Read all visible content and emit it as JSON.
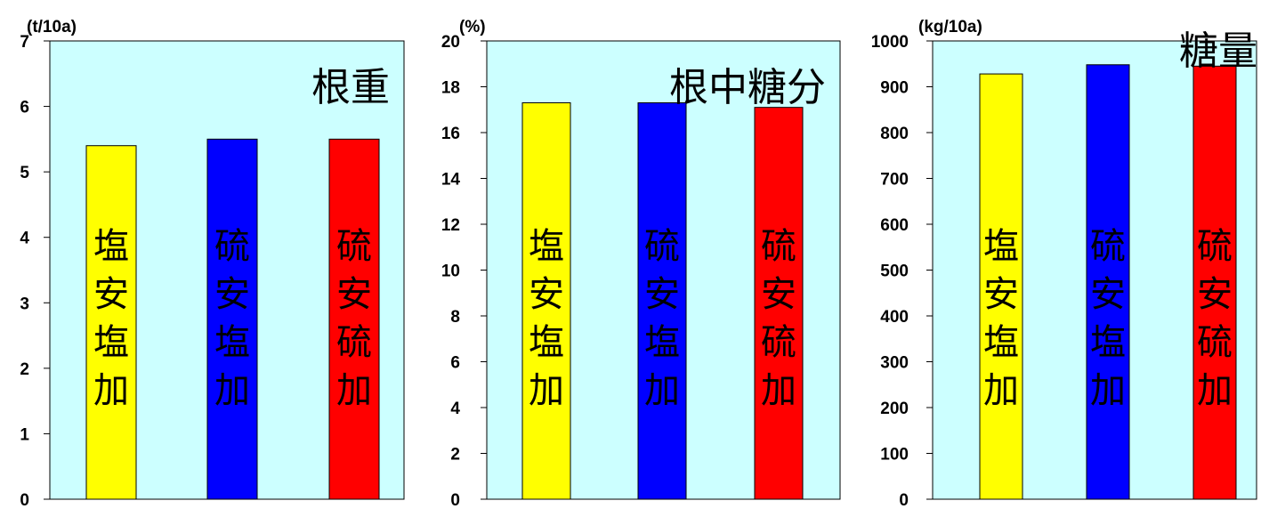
{
  "colors": {
    "plot_bg": "#ccffff",
    "yellow": "#ffff00",
    "blue": "#0000ff",
    "red": "#ff0000"
  },
  "chart_data": [
    {
      "type": "bar",
      "title": "根重",
      "ylabel": "(t/10a)",
      "ylim": [
        0,
        7
      ],
      "yticks": [
        0,
        1,
        2,
        3,
        4,
        5,
        6,
        7
      ],
      "categories": [
        "塩安塩加",
        "硫安塩加",
        "硫安硫加"
      ],
      "values": [
        5.4,
        5.5,
        5.5
      ],
      "colors": [
        "#ffff00",
        "#0000ff",
        "#ff0000"
      ]
    },
    {
      "type": "bar",
      "title": "根中糖分",
      "ylabel": "(%)",
      "ylim": [
        0,
        20
      ],
      "yticks": [
        0,
        2,
        4,
        6,
        8,
        10,
        12,
        14,
        16,
        18,
        20
      ],
      "categories": [
        "塩安塩加",
        "硫安塩加",
        "硫安硫加"
      ],
      "values": [
        17.3,
        17.3,
        17.1
      ],
      "colors": [
        "#ffff00",
        "#0000ff",
        "#ff0000"
      ]
    },
    {
      "type": "bar",
      "title": "糖量",
      "ylabel": "(kg/10a)",
      "ylim": [
        0,
        1000
      ],
      "yticks": [
        0,
        100,
        200,
        300,
        400,
        500,
        600,
        700,
        800,
        900,
        1000
      ],
      "categories": [
        "塩安塩加",
        "硫安塩加",
        "硫安硫加"
      ],
      "values": [
        928,
        948,
        945
      ],
      "colors": [
        "#ffff00",
        "#0000ff",
        "#ff0000"
      ]
    }
  ]
}
